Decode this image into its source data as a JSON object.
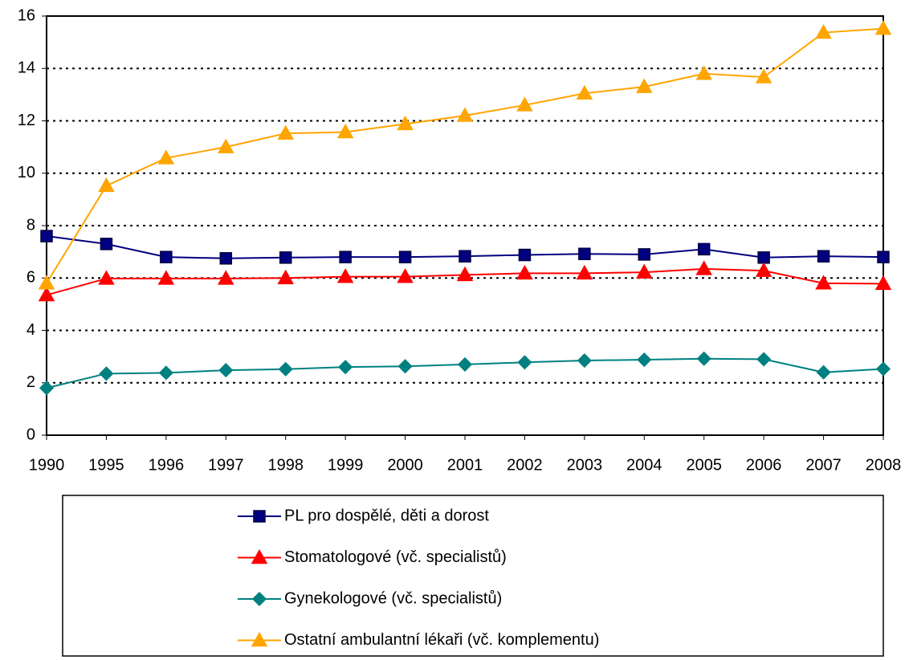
{
  "chart_data": {
    "type": "line",
    "categories": [
      "1990",
      "1995",
      "1996",
      "1997",
      "1998",
      "1999",
      "2000",
      "2001",
      "2002",
      "2003",
      "2004",
      "2005",
      "2006",
      "2007",
      "2008"
    ],
    "series": [
      {
        "name": "PL pro dospělé, děti a dorost",
        "color": "#000080",
        "marker": "square",
        "values": [
          7.6,
          7.3,
          6.8,
          6.75,
          6.78,
          6.8,
          6.8,
          6.83,
          6.88,
          6.92,
          6.9,
          7.1,
          6.78,
          6.83,
          6.8
        ]
      },
      {
        "name": "Stomatologové (vč. specialistů)",
        "color": "#ff0000",
        "marker": "triangle",
        "values": [
          5.35,
          5.98,
          5.98,
          5.98,
          6.0,
          6.05,
          6.05,
          6.12,
          6.18,
          6.18,
          6.22,
          6.35,
          6.28,
          5.8,
          5.78
        ]
      },
      {
        "name": "Gynekologové (vč. specialistů)",
        "color": "#008080",
        "marker": "diamond",
        "values": [
          1.8,
          2.35,
          2.38,
          2.48,
          2.52,
          2.6,
          2.63,
          2.7,
          2.78,
          2.85,
          2.88,
          2.92,
          2.9,
          2.4,
          2.53
        ]
      },
      {
        "name": "Ostatní ambulantní lékaři (vč. komplementu)",
        "color": "#ffa500",
        "marker": "triangle",
        "values": [
          5.8,
          9.52,
          10.58,
          11.0,
          11.52,
          11.57,
          11.88,
          12.2,
          12.6,
          13.05,
          13.3,
          13.8,
          13.67,
          15.37,
          15.52
        ]
      }
    ],
    "ylim": [
      0,
      16
    ],
    "yticks": [
      0,
      2,
      4,
      6,
      8,
      10,
      12,
      14,
      16
    ],
    "grid": true,
    "legend": "bottom"
  }
}
